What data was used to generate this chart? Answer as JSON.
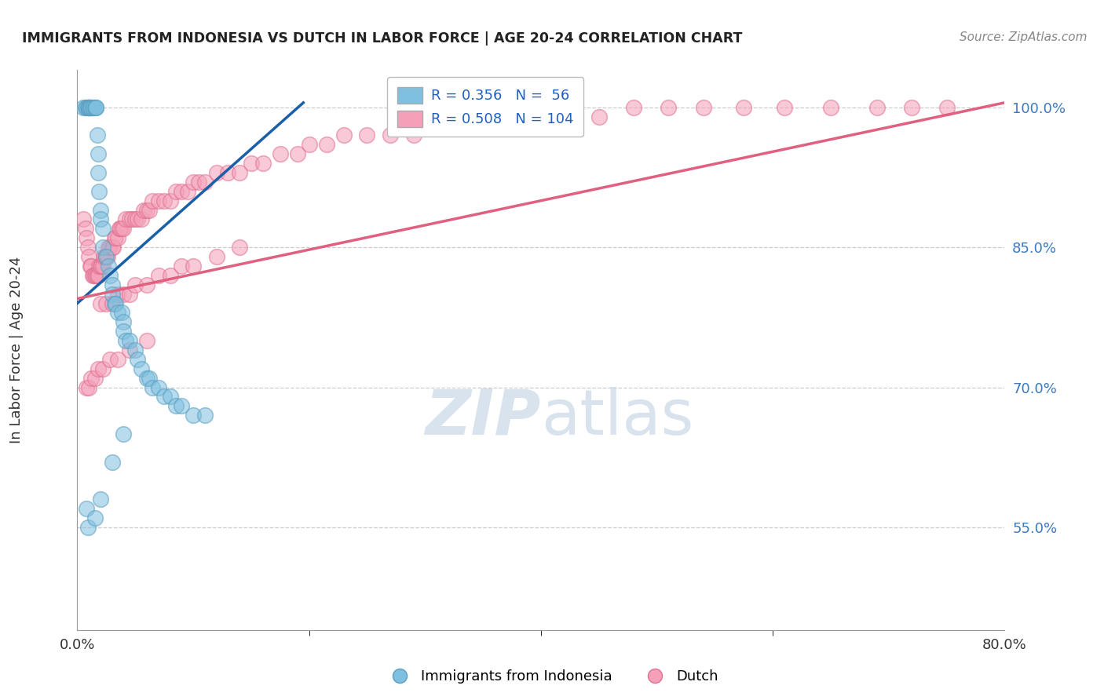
{
  "title": "IMMIGRANTS FROM INDONESIA VS DUTCH IN LABOR FORCE | AGE 20-24 CORRELATION CHART",
  "source": "Source: ZipAtlas.com",
  "ylabel": "In Labor Force | Age 20-24",
  "y_ticks": [
    0.55,
    0.7,
    0.85,
    1.0
  ],
  "y_tick_labels": [
    "55.0%",
    "70.0%",
    "85.0%",
    "100.0%"
  ],
  "x_min": 0.0,
  "x_max": 0.8,
  "y_min": 0.44,
  "y_max": 1.04,
  "blue_R": 0.356,
  "blue_N": 56,
  "pink_R": 0.508,
  "pink_N": 104,
  "blue_color": "#7fbfdf",
  "pink_color": "#f4a0b8",
  "blue_edge_color": "#5a9fc0",
  "pink_edge_color": "#e07090",
  "blue_line_color": "#1a5fa8",
  "pink_line_color": "#e06080",
  "watermark_color": "#c8d8e8",
  "blue_line_x0": 0.0,
  "blue_line_y0": 0.79,
  "blue_line_x1": 0.195,
  "blue_line_y1": 1.005,
  "pink_line_x0": 0.0,
  "pink_line_y0": 0.795,
  "pink_line_x1": 0.8,
  "pink_line_y1": 1.005,
  "blue_pts_x": [
    0.005,
    0.007,
    0.008,
    0.009,
    0.01,
    0.01,
    0.01,
    0.01,
    0.011,
    0.011,
    0.012,
    0.013,
    0.014,
    0.015,
    0.016,
    0.016,
    0.017,
    0.018,
    0.018,
    0.019,
    0.02,
    0.02,
    0.022,
    0.022,
    0.025,
    0.027,
    0.028,
    0.03,
    0.03,
    0.032,
    0.033,
    0.035,
    0.038,
    0.04,
    0.04,
    0.042,
    0.045,
    0.05,
    0.052,
    0.055,
    0.06,
    0.062,
    0.065,
    0.07,
    0.075,
    0.08,
    0.085,
    0.09,
    0.1,
    0.11,
    0.008,
    0.009,
    0.015,
    0.02,
    0.03,
    0.04
  ],
  "blue_pts_y": [
    1.0,
    1.0,
    1.0,
    1.0,
    1.0,
    1.0,
    1.0,
    1.0,
    1.0,
    1.0,
    1.0,
    1.0,
    1.0,
    1.0,
    1.0,
    1.0,
    0.97,
    0.95,
    0.93,
    0.91,
    0.89,
    0.88,
    0.87,
    0.85,
    0.84,
    0.83,
    0.82,
    0.81,
    0.8,
    0.79,
    0.79,
    0.78,
    0.78,
    0.77,
    0.76,
    0.75,
    0.75,
    0.74,
    0.73,
    0.72,
    0.71,
    0.71,
    0.7,
    0.7,
    0.69,
    0.69,
    0.68,
    0.68,
    0.67,
    0.67,
    0.57,
    0.55,
    0.56,
    0.58,
    0.62,
    0.65
  ],
  "pink_pts_x": [
    0.005,
    0.007,
    0.008,
    0.009,
    0.01,
    0.011,
    0.012,
    0.013,
    0.014,
    0.015,
    0.016,
    0.017,
    0.018,
    0.019,
    0.02,
    0.021,
    0.022,
    0.023,
    0.024,
    0.025,
    0.026,
    0.027,
    0.028,
    0.03,
    0.031,
    0.032,
    0.033,
    0.035,
    0.036,
    0.037,
    0.038,
    0.04,
    0.042,
    0.045,
    0.047,
    0.05,
    0.052,
    0.055,
    0.057,
    0.06,
    0.062,
    0.065,
    0.07,
    0.075,
    0.08,
    0.085,
    0.09,
    0.095,
    0.1,
    0.105,
    0.11,
    0.12,
    0.13,
    0.14,
    0.15,
    0.16,
    0.175,
    0.19,
    0.2,
    0.215,
    0.23,
    0.25,
    0.27,
    0.29,
    0.31,
    0.34,
    0.36,
    0.38,
    0.4,
    0.42,
    0.45,
    0.48,
    0.51,
    0.54,
    0.575,
    0.61,
    0.65,
    0.69,
    0.72,
    0.75,
    0.02,
    0.025,
    0.03,
    0.035,
    0.04,
    0.045,
    0.05,
    0.06,
    0.07,
    0.08,
    0.09,
    0.1,
    0.12,
    0.14,
    0.008,
    0.01,
    0.012,
    0.015,
    0.018,
    0.022,
    0.028,
    0.035,
    0.045,
    0.06
  ],
  "pink_pts_y": [
    0.88,
    0.87,
    0.86,
    0.85,
    0.84,
    0.83,
    0.83,
    0.82,
    0.82,
    0.82,
    0.82,
    0.82,
    0.82,
    0.83,
    0.83,
    0.83,
    0.83,
    0.84,
    0.84,
    0.84,
    0.84,
    0.85,
    0.85,
    0.85,
    0.85,
    0.86,
    0.86,
    0.86,
    0.87,
    0.87,
    0.87,
    0.87,
    0.88,
    0.88,
    0.88,
    0.88,
    0.88,
    0.88,
    0.89,
    0.89,
    0.89,
    0.9,
    0.9,
    0.9,
    0.9,
    0.91,
    0.91,
    0.91,
    0.92,
    0.92,
    0.92,
    0.93,
    0.93,
    0.93,
    0.94,
    0.94,
    0.95,
    0.95,
    0.96,
    0.96,
    0.97,
    0.97,
    0.97,
    0.97,
    0.98,
    0.98,
    0.98,
    0.98,
    0.99,
    0.99,
    0.99,
    1.0,
    1.0,
    1.0,
    1.0,
    1.0,
    1.0,
    1.0,
    1.0,
    1.0,
    0.79,
    0.79,
    0.79,
    0.8,
    0.8,
    0.8,
    0.81,
    0.81,
    0.82,
    0.82,
    0.83,
    0.83,
    0.84,
    0.85,
    0.7,
    0.7,
    0.71,
    0.71,
    0.72,
    0.72,
    0.73,
    0.73,
    0.74,
    0.75
  ]
}
